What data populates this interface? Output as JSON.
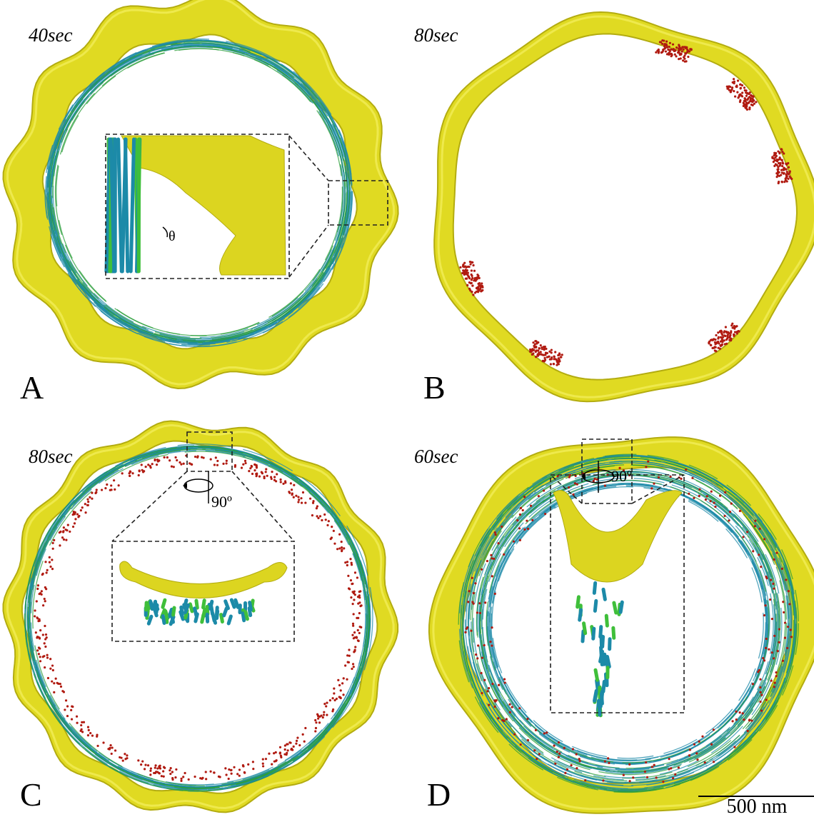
{
  "panels": [
    {
      "label": "A",
      "time": "40sec",
      "inset_angle": "θ"
    },
    {
      "label": "B",
      "time": "80sec"
    },
    {
      "label": "C",
      "time": "80sec",
      "rotation": "90º"
    },
    {
      "label": "D",
      "time": "60sec",
      "rotation": "90º"
    }
  ],
  "scale_bar": "500 nm"
}
